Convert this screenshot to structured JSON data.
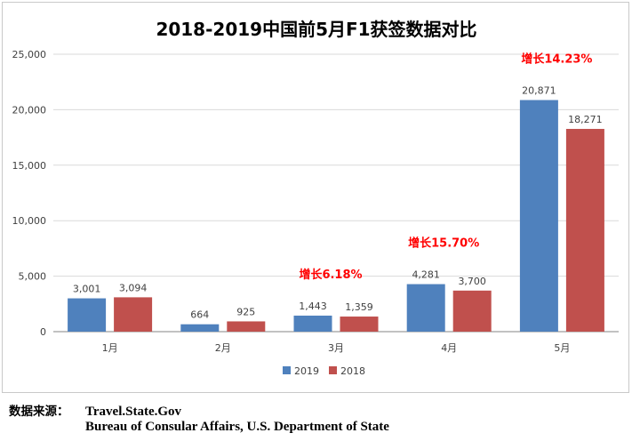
{
  "chart_data": {
    "type": "bar",
    "title": "2018-2019中国前5月F1获签数据对比",
    "categories": [
      "1月",
      "2月",
      "3月",
      "4月",
      "5月"
    ],
    "series": [
      {
        "name": "2019",
        "color": "#4f81bd",
        "values": [
          3001,
          664,
          1443,
          4281,
          20871
        ]
      },
      {
        "name": "2018",
        "color": "#c0504d",
        "values": [
          3094,
          925,
          1359,
          3700,
          18271
        ]
      }
    ],
    "value_labels": {
      "2019": [
        "3,001",
        "664",
        "1,443",
        "4,281",
        "20,871"
      ],
      "2018": [
        "3,094",
        "925",
        "1,359",
        "3,700",
        "18,271"
      ]
    },
    "yticks": [
      0,
      5000,
      10000,
      15000,
      20000,
      25000
    ],
    "ytick_labels": [
      "0",
      "5,000",
      "10,000",
      "15,000",
      "20,000",
      "25,000"
    ],
    "ylim": [
      0,
      25000
    ],
    "xlabel": "",
    "ylabel": "",
    "legend_position": "bottom",
    "grid": true,
    "annotations": [
      {
        "category_index": 2,
        "text": "增长6.18%"
      },
      {
        "category_index": 3,
        "text": "增长15.70%"
      },
      {
        "category_index": 4,
        "text": "增长14.23%"
      }
    ],
    "annotation_color": "#ff0000"
  },
  "source": {
    "label": "数据来源：",
    "line1": "Travel.State.Gov",
    "line2": "Bureau of Consular Affairs, U.S. Department of State"
  }
}
